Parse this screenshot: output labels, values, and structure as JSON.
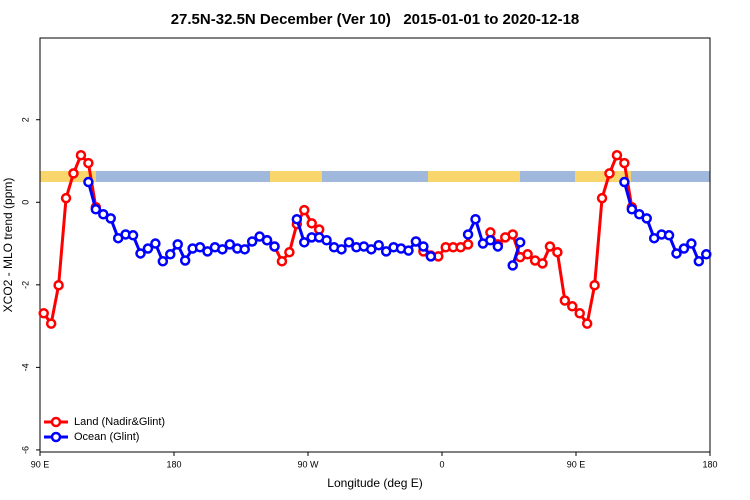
{
  "chart_data": {
    "type": "line",
    "title": "27.5N-32.5N December (Ver 10)   2015-01-01 to 2020-12-18",
    "x_label": "Longitude (deg E)",
    "y_label": "XCO2 - MLO trend (ppm)",
    "xlim": [
      90,
      540
    ],
    "ylim": [
      -6.05,
      3.98
    ],
    "xticks": [
      {
        "value": 90,
        "label": "90 E"
      },
      {
        "value": 180,
        "label": "180"
      },
      {
        "value": 270,
        "label": "90 W"
      },
      {
        "value": 360,
        "label": "0"
      },
      {
        "value": 450,
        "label": "90 E"
      },
      {
        "value": 540,
        "label": "180"
      }
    ],
    "yticks": [
      -6,
      -4,
      -2,
      0,
      2
    ],
    "legend": "bottom-left",
    "x": [
      92.5,
      97.5,
      102.5,
      107.5,
      112.5,
      117.5,
      122.5,
      127.5,
      132.5,
      137.5,
      142.5,
      147.5,
      152.5,
      157.5,
      162.5,
      167.5,
      172.5,
      177.5,
      182.5,
      187.5,
      192.5,
      197.5,
      202.5,
      207.5,
      212.5,
      217.5,
      222.5,
      227.5,
      232.5,
      237.5,
      242.5,
      247.5,
      252.5,
      257.5,
      262.5,
      267.5,
      272.5,
      277.5,
      282.5,
      287.5,
      292.5,
      297.5,
      302.5,
      307.5,
      312.5,
      317.5,
      322.5,
      327.5,
      332.5,
      337.5,
      342.5,
      347.5,
      352.5,
      357.5,
      362.5,
      367.5,
      372.5,
      377.5,
      382.5,
      387.5,
      392.5,
      397.5,
      402.5,
      407.5,
      412.5,
      417.5,
      422.5,
      427.5,
      432.5,
      437.5,
      442.5,
      447.5,
      452.5,
      457.5,
      462.5,
      467.5,
      472.5,
      477.5,
      482.5,
      487.5,
      492.5,
      497.5,
      502.5,
      507.5,
      512.5,
      517.5,
      522.5,
      527.5,
      532.5,
      537.5
    ],
    "series": [
      {
        "name": "Land (Nadir&Glint)",
        "color": "#ff0000",
        "values": [
          -2.69,
          -2.94,
          -2.01,
          0.1,
          0.7,
          1.14,
          0.95,
          -0.12,
          null,
          null,
          null,
          null,
          null,
          null,
          null,
          null,
          null,
          null,
          null,
          null,
          null,
          null,
          null,
          null,
          null,
          null,
          null,
          null,
          null,
          null,
          -0.92,
          -1.07,
          -1.43,
          -1.21,
          -0.53,
          -0.19,
          -0.51,
          -0.66,
          null,
          null,
          null,
          null,
          null,
          null,
          null,
          null,
          null,
          null,
          null,
          null,
          -0.95,
          -1.19,
          -1.29,
          -1.31,
          -1.09,
          -1.09,
          -1.09,
          -1.02,
          null,
          null,
          -0.73,
          -1.02,
          -0.85,
          -0.78,
          -1.33,
          -1.26,
          -1.41,
          -1.48,
          -1.07,
          -1.21,
          -2.38,
          -2.52,
          -2.69,
          -2.94,
          -2.01,
          0.1,
          0.7,
          1.14,
          0.95,
          -0.12,
          null,
          null,
          null,
          null,
          null,
          null,
          null,
          null,
          null,
          null
        ]
      },
      {
        "name": "Ocean (Glint)",
        "color": "#0000ff",
        "values": [
          null,
          null,
          null,
          null,
          null,
          null,
          0.49,
          -0.17,
          -0.29,
          -0.39,
          -0.87,
          -0.78,
          -0.8,
          -1.24,
          -1.12,
          -1.0,
          -1.43,
          -1.26,
          -1.02,
          -1.41,
          -1.12,
          -1.09,
          -1.19,
          -1.09,
          -1.14,
          -1.02,
          -1.12,
          -1.14,
          -0.95,
          -0.83,
          -0.92,
          -1.07,
          null,
          null,
          -0.41,
          -0.97,
          -0.85,
          -0.85,
          -0.92,
          -1.09,
          -1.14,
          -0.97,
          -1.09,
          -1.07,
          -1.14,
          -1.04,
          -1.19,
          -1.09,
          -1.12,
          -1.17,
          -0.95,
          -1.07,
          -1.31,
          null,
          null,
          null,
          null,
          -0.78,
          -0.41,
          -1.0,
          -0.92,
          -1.07,
          null,
          -1.53,
          -0.97,
          null,
          null,
          null,
          null,
          null,
          null,
          null,
          null,
          null,
          null,
          null,
          null,
          null,
          0.49,
          -0.17,
          -0.29,
          -0.39,
          -0.87,
          -0.78,
          -0.8,
          -1.24,
          -1.12,
          -1.0,
          -1.43,
          -1.26
        ]
      }
    ]
  }
}
